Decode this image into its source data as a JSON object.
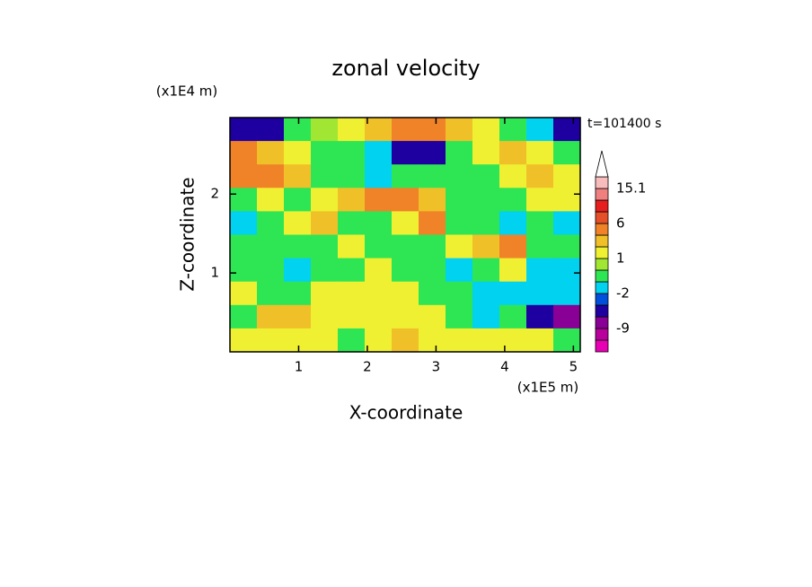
{
  "chart_data": {
    "type": "contour",
    "title": "zonal velocity",
    "xlabel": "X-coordinate",
    "ylabel": "Z-coordinate",
    "x_unit": "(x1E5 m)",
    "y_unit": "(x1E4 m)",
    "annotation": "t=101400 s",
    "xlim": [
      0,
      5.1
    ],
    "ylim": [
      0,
      2.97
    ],
    "xticks": [
      1,
      2,
      3,
      4,
      5
    ],
    "yticks": [
      1,
      2
    ],
    "levels": [
      -12,
      -9,
      -6,
      -4,
      -2,
      -1,
      0,
      1,
      2,
      4,
      6,
      9,
      12,
      15.1
    ],
    "colors": [
      "#e800b4",
      "#b8009c",
      "#880096",
      "#1e00a0",
      "#0050dc",
      "#00d2f0",
      "#2ee654",
      "#a0e632",
      "#f0f032",
      "#f0c028",
      "#f08228",
      "#e65028",
      "#e61e1e",
      "#f08080",
      "#f8bcbc",
      "#ffffff"
    ],
    "colorbar_ticks": [
      -9,
      -2,
      1,
      6,
      15.1
    ],
    "z": [
      [
        -5,
        -5,
        -0.5,
        0.5,
        1.5,
        3,
        5,
        5,
        3,
        1.5,
        -0.5,
        -1.5,
        -5
      ],
      [
        5,
        3,
        1.5,
        -0.5,
        -0.5,
        -1.5,
        -5,
        -5,
        -0.5,
        1.5,
        3,
        1.5,
        -0.5
      ],
      [
        5,
        5,
        3,
        -0.5,
        -0.5,
        -1.5,
        -0.5,
        -0.5,
        -0.5,
        -0.5,
        1.5,
        3,
        1.5
      ],
      [
        -0.5,
        1.5,
        -0.5,
        1.5,
        3,
        5,
        5,
        3,
        -0.5,
        -0.5,
        -0.5,
        1.5,
        1.5
      ],
      [
        -1.5,
        -0.5,
        1.5,
        3,
        -0.5,
        -0.5,
        1.5,
        5,
        -0.5,
        -0.5,
        -1.5,
        -0.5,
        -1.5
      ],
      [
        -0.5,
        -0.5,
        -0.5,
        -0.5,
        1.5,
        -0.5,
        -0.5,
        -0.5,
        1.5,
        3,
        5,
        -0.5,
        -0.5
      ],
      [
        -0.5,
        -0.5,
        -1.5,
        -0.5,
        -0.5,
        1.5,
        -0.5,
        -0.5,
        -1.5,
        -0.5,
        1.5,
        -1.5,
        -1.5
      ],
      [
        1.5,
        -0.5,
        -0.5,
        1.5,
        1.5,
        1.5,
        1.5,
        -0.5,
        -0.5,
        -1.5,
        -1.5,
        -1.5,
        -1.5
      ],
      [
        -0.5,
        3,
        3,
        1.5,
        1.5,
        1.5,
        1.5,
        1.5,
        -0.5,
        -1.5,
        -0.5,
        -5,
        -9
      ],
      [
        1.5,
        1.5,
        1.5,
        1.5,
        -0.5,
        1.5,
        3,
        1.5,
        1.5,
        1.5,
        1.5,
        1.5,
        -0.5
      ]
    ]
  }
}
